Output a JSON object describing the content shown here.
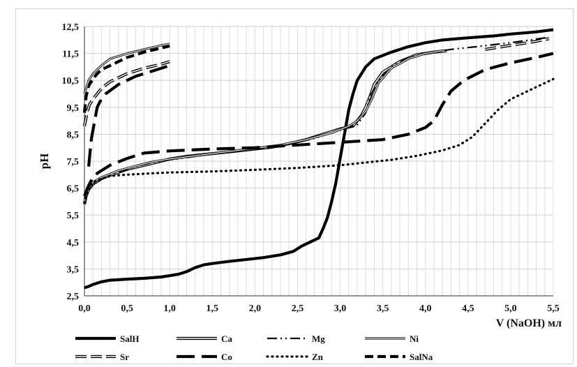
{
  "chart_data": {
    "type": "line",
    "xlabel": "V (NaOH) мл",
    "ylabel": "pH",
    "xlim": [
      0,
      5.5
    ],
    "ylim": [
      2.5,
      12.5
    ],
    "x_ticks": [
      "0,0",
      "0,5",
      "1,0",
      "1,5",
      "2,0",
      "2,5",
      "3,0",
      "3,5",
      "4,0",
      "4,5",
      "5,0",
      "5,5"
    ],
    "y_ticks": [
      "2,5",
      "3,5",
      "4,5",
      "5,5",
      "6,5",
      "7,5",
      "8,5",
      "9,5",
      "10,5",
      "11,5",
      "12,5"
    ],
    "grid": true,
    "legend_position": "bottom",
    "series": [
      {
        "name": "SalH",
        "color": "#000000",
        "style": "solid-thick",
        "points": [
          [
            0.0,
            2.8
          ],
          [
            0.05,
            2.85
          ],
          [
            0.1,
            2.92
          ],
          [
            0.2,
            3.02
          ],
          [
            0.3,
            3.08
          ],
          [
            0.5,
            3.12
          ],
          [
            0.7,
            3.15
          ],
          [
            0.9,
            3.2
          ],
          [
            1.0,
            3.25
          ],
          [
            1.1,
            3.3
          ],
          [
            1.2,
            3.4
          ],
          [
            1.3,
            3.55
          ],
          [
            1.4,
            3.65
          ],
          [
            1.5,
            3.7
          ],
          [
            1.7,
            3.78
          ],
          [
            1.9,
            3.85
          ],
          [
            2.1,
            3.92
          ],
          [
            2.3,
            4.02
          ],
          [
            2.45,
            4.15
          ],
          [
            2.55,
            4.35
          ],
          [
            2.65,
            4.5
          ],
          [
            2.75,
            4.65
          ],
          [
            2.8,
            5.0
          ],
          [
            2.85,
            5.4
          ],
          [
            2.9,
            6.0
          ],
          [
            2.95,
            6.7
          ],
          [
            3.0,
            7.6
          ],
          [
            3.05,
            8.5
          ],
          [
            3.1,
            9.4
          ],
          [
            3.15,
            10.0
          ],
          [
            3.2,
            10.5
          ],
          [
            3.3,
            11.0
          ],
          [
            3.4,
            11.3
          ],
          [
            3.6,
            11.55
          ],
          [
            3.8,
            11.75
          ],
          [
            4.0,
            11.9
          ],
          [
            4.2,
            12.0
          ],
          [
            4.5,
            12.08
          ],
          [
            4.8,
            12.15
          ],
          [
            5.0,
            12.22
          ],
          [
            5.3,
            12.3
          ],
          [
            5.5,
            12.38
          ]
        ]
      },
      {
        "name": "Ca",
        "color": "#000000",
        "style": "double",
        "points": [
          [
            0.0,
            5.9
          ],
          [
            0.02,
            6.2
          ],
          [
            0.05,
            6.45
          ],
          [
            0.1,
            6.65
          ],
          [
            0.2,
            6.85
          ],
          [
            0.3,
            6.98
          ],
          [
            0.5,
            7.2
          ],
          [
            0.7,
            7.35
          ],
          [
            0.9,
            7.5
          ],
          [
            1.0,
            7.58
          ],
          [
            1.2,
            7.68
          ],
          [
            1.5,
            7.78
          ],
          [
            1.8,
            7.88
          ],
          [
            2.0,
            7.95
          ],
          [
            2.2,
            8.02
          ],
          [
            2.4,
            8.15
          ],
          [
            2.6,
            8.3
          ],
          [
            2.8,
            8.5
          ],
          [
            3.0,
            8.7
          ],
          [
            3.15,
            8.8
          ],
          [
            3.25,
            9.2
          ],
          [
            3.3,
            9.5
          ],
          [
            3.35,
            9.9
          ],
          [
            3.4,
            10.35
          ],
          [
            3.5,
            10.8
          ],
          [
            3.7,
            11.2
          ],
          [
            3.9,
            11.45
          ],
          [
            4.1,
            11.55
          ],
          [
            4.25,
            11.6
          ]
        ]
      },
      {
        "name": "Mg",
        "color": "#000000",
        "style": "dash-dot-dot",
        "points": [
          [
            0.0,
            6.1
          ],
          [
            0.03,
            6.4
          ],
          [
            0.08,
            6.55
          ],
          [
            0.12,
            6.7
          ],
          [
            0.2,
            6.85
          ],
          [
            0.4,
            7.1
          ],
          [
            0.6,
            7.3
          ],
          [
            0.8,
            7.45
          ],
          [
            1.0,
            7.55
          ],
          [
            1.3,
            7.68
          ],
          [
            1.6,
            7.8
          ],
          [
            2.0,
            7.95
          ],
          [
            2.4,
            8.12
          ],
          [
            2.7,
            8.35
          ],
          [
            3.0,
            8.65
          ],
          [
            3.2,
            8.85
          ],
          [
            3.3,
            9.3
          ],
          [
            3.35,
            9.9
          ],
          [
            3.45,
            10.5
          ],
          [
            3.6,
            11.0
          ],
          [
            3.8,
            11.35
          ],
          [
            4.0,
            11.5
          ],
          [
            4.3,
            11.65
          ],
          [
            4.6,
            11.75
          ],
          [
            5.0,
            11.9
          ],
          [
            5.45,
            12.1
          ]
        ]
      },
      {
        "name": "Ni",
        "color": "#000000",
        "style": "double-thin",
        "points": [
          [
            0.0,
            6.0
          ],
          [
            0.03,
            6.5
          ],
          [
            0.06,
            6.6
          ],
          [
            0.1,
            6.72
          ],
          [
            0.2,
            6.9
          ],
          [
            0.4,
            7.15
          ],
          [
            0.6,
            7.32
          ],
          [
            0.8,
            7.48
          ],
          [
            1.0,
            7.58
          ],
          [
            1.3,
            7.7
          ],
          [
            1.6,
            7.82
          ],
          [
            2.0,
            7.98
          ],
          [
            2.3,
            8.1
          ],
          [
            2.6,
            8.3
          ],
          [
            2.9,
            8.55
          ],
          [
            3.1,
            8.8
          ],
          [
            3.2,
            9.0
          ],
          [
            3.3,
            9.35
          ],
          [
            3.37,
            9.8
          ],
          [
            3.45,
            10.4
          ],
          [
            3.6,
            10.95
          ],
          [
            3.8,
            11.3
          ],
          [
            4.0,
            11.5
          ],
          [
            4.2,
            11.6
          ]
        ]
      },
      {
        "name": "Sr",
        "color": "#000000",
        "style": "dash-double",
        "points": [
          [
            4.7,
            11.65
          ],
          [
            4.9,
            11.75
          ],
          [
            5.1,
            11.85
          ],
          [
            5.3,
            11.95
          ],
          [
            5.45,
            12.05
          ]
        ]
      },
      {
        "name": "Co",
        "color": "#000000",
        "style": "long-dash",
        "points": [
          [
            0.0,
            6.2
          ],
          [
            0.05,
            6.6
          ],
          [
            0.1,
            6.9
          ],
          [
            0.15,
            7.05
          ],
          [
            0.2,
            7.15
          ],
          [
            0.3,
            7.35
          ],
          [
            0.5,
            7.6
          ],
          [
            0.7,
            7.8
          ],
          [
            1.0,
            7.88
          ],
          [
            1.5,
            7.95
          ],
          [
            2.0,
            8.0
          ],
          [
            2.5,
            8.1
          ],
          [
            3.0,
            8.2
          ],
          [
            3.5,
            8.3
          ],
          [
            3.8,
            8.5
          ],
          [
            4.0,
            8.75
          ],
          [
            4.1,
            9.0
          ],
          [
            4.2,
            9.6
          ],
          [
            4.3,
            10.1
          ],
          [
            4.45,
            10.5
          ],
          [
            4.7,
            10.9
          ],
          [
            5.0,
            11.15
          ],
          [
            5.3,
            11.35
          ],
          [
            5.5,
            11.5
          ]
        ]
      },
      {
        "name": "Zn",
        "color": "#000000",
        "style": "dotted",
        "points": [
          [
            0.0,
            5.95
          ],
          [
            0.03,
            6.3
          ],
          [
            0.06,
            6.5
          ],
          [
            0.1,
            6.7
          ],
          [
            0.2,
            6.85
          ],
          [
            0.3,
            6.95
          ],
          [
            0.5,
            7.0
          ],
          [
            0.8,
            7.05
          ],
          [
            1.0,
            7.08
          ],
          [
            1.5,
            7.12
          ],
          [
            2.0,
            7.18
          ],
          [
            2.5,
            7.25
          ],
          [
            3.0,
            7.35
          ],
          [
            3.3,
            7.45
          ],
          [
            3.6,
            7.55
          ],
          [
            3.9,
            7.7
          ],
          [
            4.2,
            7.9
          ],
          [
            4.4,
            8.1
          ],
          [
            4.55,
            8.4
          ],
          [
            4.7,
            8.9
          ],
          [
            4.85,
            9.4
          ],
          [
            5.0,
            9.8
          ],
          [
            5.2,
            10.1
          ],
          [
            5.4,
            10.4
          ],
          [
            5.5,
            10.55
          ]
        ]
      },
      {
        "name": "SalNa",
        "color": "#000000",
        "style": "dashed-thick",
        "points": [
          [
            0.0,
            9.3
          ],
          [
            0.02,
            9.9
          ],
          [
            0.05,
            10.3
          ],
          [
            0.1,
            10.55
          ],
          [
            0.15,
            10.75
          ],
          [
            0.2,
            10.9
          ],
          [
            0.3,
            11.05
          ],
          [
            0.5,
            11.35
          ],
          [
            0.7,
            11.55
          ],
          [
            0.9,
            11.7
          ],
          [
            1.0,
            11.78
          ]
        ]
      },
      {
        "name": "",
        "color": "#000000",
        "style": "dash-double",
        "legend": false,
        "points": [
          [
            0.0,
            8.8
          ],
          [
            0.03,
            9.3
          ],
          [
            0.06,
            9.6
          ],
          [
            0.1,
            9.8
          ],
          [
            0.15,
            10.0
          ],
          [
            0.2,
            10.2
          ],
          [
            0.3,
            10.45
          ],
          [
            0.5,
            10.75
          ],
          [
            0.7,
            10.95
          ],
          [
            0.9,
            11.1
          ],
          [
            1.0,
            11.2
          ]
        ]
      },
      {
        "name": "",
        "color": "#000000",
        "style": "long-dash",
        "legend": false,
        "points": [
          [
            0.05,
            7.3
          ],
          [
            0.08,
            8.3
          ],
          [
            0.12,
            9.0
          ],
          [
            0.15,
            9.5
          ],
          [
            0.18,
            9.7
          ],
          [
            0.25,
            10.0
          ],
          [
            0.4,
            10.35
          ],
          [
            0.6,
            10.65
          ],
          [
            0.8,
            10.85
          ],
          [
            1.0,
            11.05
          ]
        ]
      },
      {
        "name": "",
        "color": "#000000",
        "style": "double-thin",
        "legend": false,
        "points": [
          [
            0.0,
            10.0
          ],
          [
            0.05,
            10.5
          ],
          [
            0.1,
            10.75
          ],
          [
            0.2,
            11.05
          ],
          [
            0.3,
            11.3
          ],
          [
            0.5,
            11.5
          ],
          [
            0.7,
            11.65
          ],
          [
            0.9,
            11.8
          ],
          [
            1.0,
            11.85
          ]
        ]
      }
    ]
  }
}
